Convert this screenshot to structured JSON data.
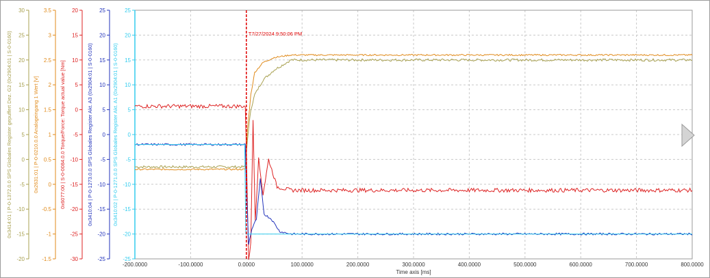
{
  "chart_data": {
    "type": "line",
    "xlabel": "Time axis [ms]",
    "xlim": [
      -200,
      800
    ],
    "x_ticks": [
      "-200.0000",
      "-100.0000",
      "0.0000",
      "100.0000",
      "200.0000",
      "300.0000",
      "400.0000",
      "500.0000",
      "600.0000",
      "700.0000",
      "800.0000"
    ],
    "cursor": {
      "x": 0,
      "label": "T7/27/2024 9:50:06 PM",
      "color": "#e00000"
    },
    "y_axes": [
      {
        "label": "0x3414:01 | P-0-1372.0.0 SPS Globales Register gepuffert Dez. G2 (0x2904:01 | S-0-0160)",
        "ylim": [
          -20,
          30
        ],
        "ticks": [
          "30",
          "25",
          "20",
          "15",
          "10",
          "5",
          "0",
          "-5",
          "-10",
          "-15",
          "-20"
        ],
        "color": "#a8a050"
      },
      {
        "label": "0x2631:01 | P-0-0210.0.0 Analogeingang 1 Wert [V]",
        "ylim": [
          -1.5,
          3.5
        ],
        "ticks": [
          "3.5",
          "3",
          "2.5",
          "2",
          "1.5",
          "1",
          "0.5",
          "0",
          "-0.5",
          "-1",
          "-1.5"
        ],
        "color": "#e08a1a"
      },
      {
        "label": "0x6077:00 | S-0-0084.0.0 Torque/Force: Torque actual value [Nm]",
        "ylim": [
          -30,
          20
        ],
        "ticks": [
          "20",
          "15",
          "10",
          "5",
          "0",
          "-5",
          "-10",
          "-15",
          "-20",
          "-25",
          "-30"
        ],
        "color": "#dd2222"
      },
      {
        "label": "0x3410:04 | P-0-1273.0.0 SPS Globales Register Akt. A3 (0x2904:01 | S-0-0160)",
        "ylim": [
          -25,
          25
        ],
        "ticks": [
          "25",
          "20",
          "15",
          "10",
          "5",
          "0",
          "-5",
          "-10",
          "-15",
          "-20",
          "-25"
        ],
        "color": "#2233bb"
      },
      {
        "label": "0x3410:02 | P-0-1271.0.0 SPS Globales Register Akt. A1 (0x2904:01 | S-0-0160)",
        "ylim": [
          -25,
          25
        ],
        "ticks": [
          "25",
          "20",
          "15",
          "10",
          "5",
          "0",
          "-5",
          "-10",
          "-15",
          "-20",
          "-25"
        ],
        "color": "#33ccee"
      }
    ],
    "series": [
      {
        "axis": 0,
        "color": "#a8a050",
        "points": [
          [
            -200,
            -1.5
          ],
          [
            -2,
            -1.5
          ],
          [
            2,
            4
          ],
          [
            8,
            10
          ],
          [
            15,
            13
          ],
          [
            30,
            16
          ],
          [
            50,
            18
          ],
          [
            80,
            20
          ],
          [
            120,
            20
          ],
          [
            800,
            20
          ]
        ],
        "noise": 0.25
      },
      {
        "axis": 1,
        "color": "#e08a1a",
        "points": [
          [
            -200,
            0.3
          ],
          [
            -2,
            0.3
          ],
          [
            2,
            1.1
          ],
          [
            8,
            1.8
          ],
          [
            15,
            2.25
          ],
          [
            30,
            2.45
          ],
          [
            50,
            2.55
          ],
          [
            80,
            2.6
          ],
          [
            800,
            2.6
          ]
        ],
        "noise": 0.015
      },
      {
        "axis": 2,
        "color": "#dd2222",
        "points": [
          [
            -200,
            0.7
          ],
          [
            -2,
            0.7
          ],
          [
            0,
            -8
          ],
          [
            4,
            -30
          ],
          [
            8,
            -27
          ],
          [
            12,
            -2
          ],
          [
            16,
            -22
          ],
          [
            22,
            -10
          ],
          [
            30,
            -17
          ],
          [
            40,
            -10
          ],
          [
            55,
            -15.5
          ],
          [
            80,
            -16.2
          ],
          [
            800,
            -16.2
          ]
        ],
        "noise": 0.4
      },
      {
        "axis": 3,
        "color": "#2233bb",
        "points": [
          [
            -200,
            -2
          ],
          [
            -2,
            -2
          ],
          [
            0,
            -10
          ],
          [
            4,
            -22
          ],
          [
            10,
            -19
          ],
          [
            18,
            -17
          ],
          [
            25,
            -9
          ],
          [
            32,
            -16
          ],
          [
            45,
            -17
          ],
          [
            60,
            -19.5
          ],
          [
            80,
            -20
          ],
          [
            800,
            -20
          ]
        ],
        "noise": 0.2
      },
      {
        "axis": 4,
        "color": "#33ccee",
        "points": [
          [
            -200,
            -2
          ],
          [
            -3,
            -2
          ],
          [
            -1,
            -20
          ],
          [
            800,
            -20
          ]
        ],
        "noise": 0
      }
    ]
  },
  "nav": {
    "next_icon": "triangle-right-icon"
  }
}
